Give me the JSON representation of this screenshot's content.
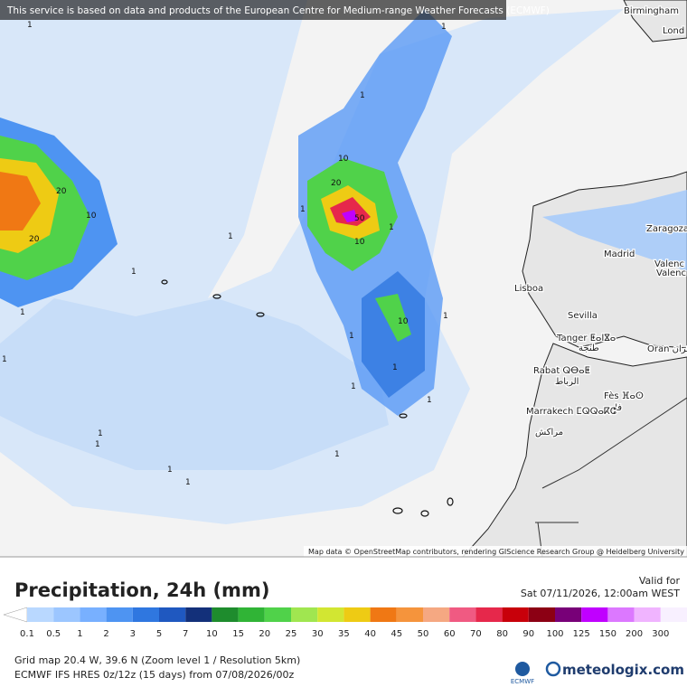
{
  "header": {
    "notice": "This service is based on data and products of the European Centre for Medium-range Weather Forecasts (ECMWF)"
  },
  "map": {
    "cities": [
      "Birmingham",
      "Lond",
      "Zaragoza",
      "Madrid",
      "Valenc",
      "Valenc",
      "Lisboa",
      "Sevilla",
      "Tanger ⵟⴰⵏⴵⴰ",
      "طنجة",
      "Oran وهران",
      "Rabat ⵕⴱⴰⵟ",
      "الرباط",
      "Fès ⴼⴰⵙ",
      "فاس",
      "Marrakech ⵎⵕⵕⴰⴽⵛ",
      "مراكش"
    ],
    "contour_labels": [
      "1",
      "1",
      "1",
      "20",
      "10",
      "20",
      "1",
      "1",
      "1",
      "1",
      "10",
      "20",
      "50",
      "10",
      "1",
      "1",
      "10",
      "1",
      "1",
      "1",
      "1",
      "1",
      "1",
      "1",
      "1",
      "1",
      "1"
    ],
    "attribution": "Map data © OpenStreetMap contributors, rendering GIScience Research Group @ Heidelberg University"
  },
  "legend": {
    "title": "Precipitation, 24h (mm)",
    "valid_label": "Valid for",
    "valid_time": "Sat 07/11/2026, 12:00am WEST",
    "ticks": [
      "0.1",
      "0.5",
      "1",
      "2",
      "3",
      "5",
      "7",
      "10",
      "15",
      "20",
      "25",
      "30",
      "35",
      "40",
      "45",
      "50",
      "60",
      "70",
      "80",
      "90",
      "100",
      "125",
      "150",
      "200",
      "300"
    ],
    "below_color": "#ffffff",
    "above_color": "#a0a0a0",
    "colors": [
      "#b9d8ff",
      "#9cc6ff",
      "#78b0ff",
      "#4e94f2",
      "#2f77e0",
      "#1f58c0",
      "#13307a",
      "#1e8c2d",
      "#30b436",
      "#50d24a",
      "#a0e650",
      "#d2e632",
      "#eecb14",
      "#f07814",
      "#f5943c",
      "#f5a882",
      "#f05a82",
      "#e6284b",
      "#c8000a",
      "#8c0014",
      "#780078",
      "#c000ff",
      "#dc78ff",
      "#f0b4ff",
      "#f8f0ff",
      "#d2d2d2"
    ]
  },
  "footer": {
    "grid": "Grid map 20.4 W, 39.6 N (Zoom level 1 / Resolution 5km)",
    "model": "ECMWF IFS HRES 0z/12z (15 days) from 07/08/2026/00z",
    "ecmwf": "ECMWF",
    "brand": "meteologix.com"
  }
}
